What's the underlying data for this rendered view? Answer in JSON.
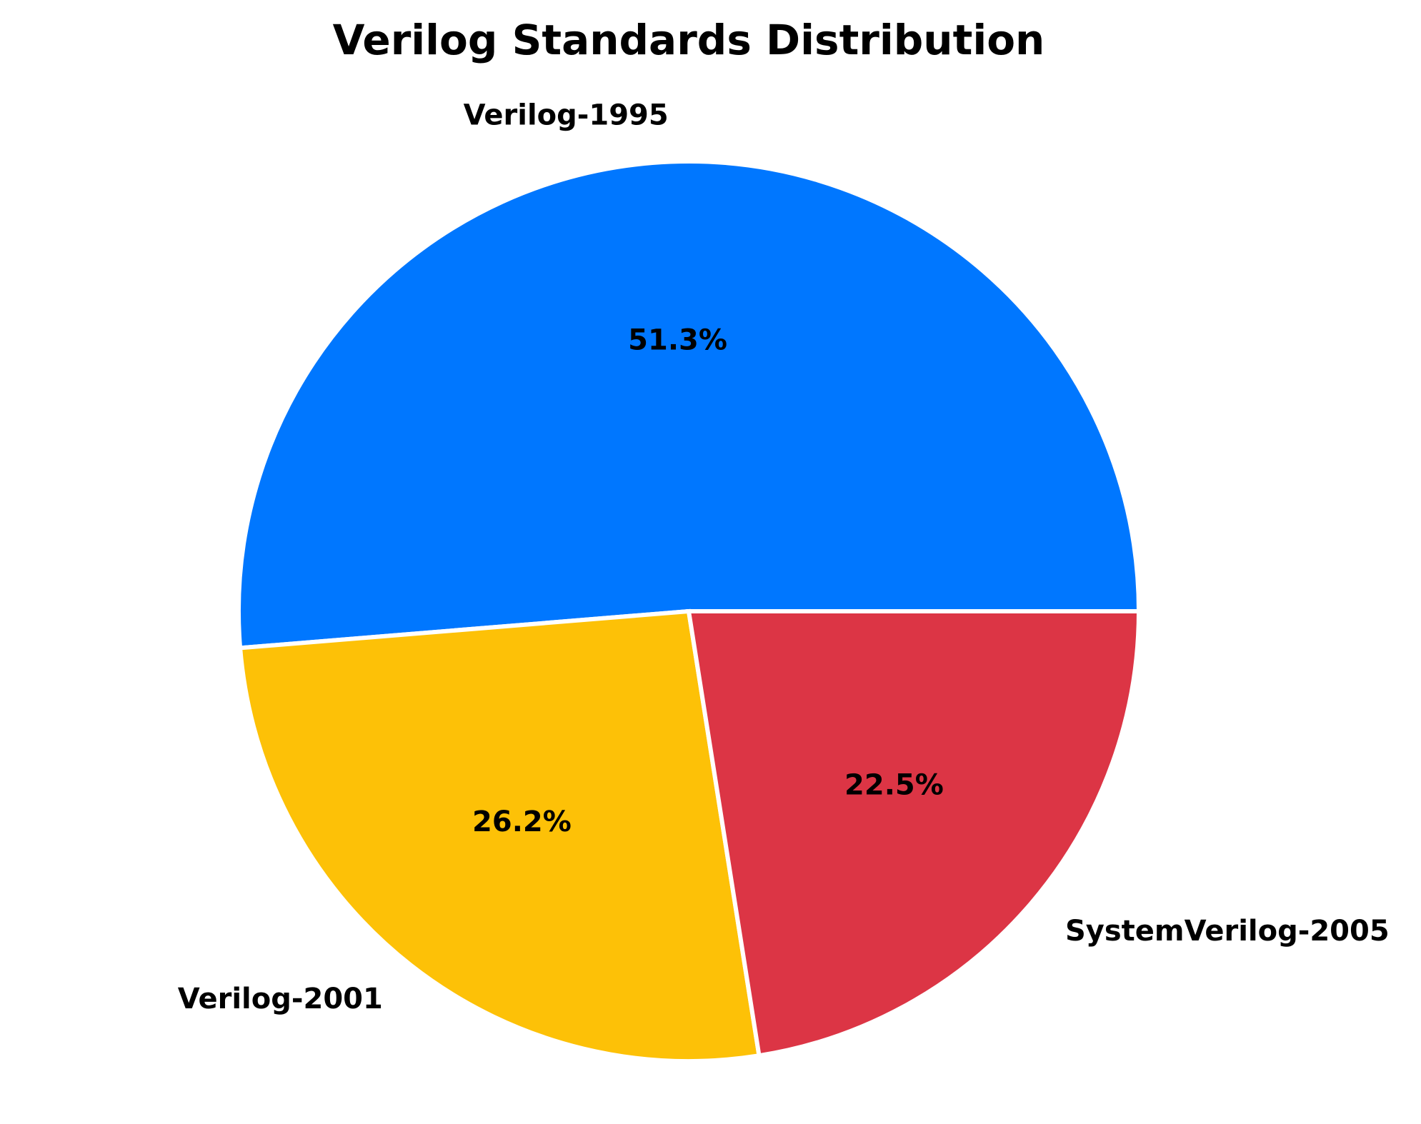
{
  "chart_data": {
    "type": "pie",
    "title": "Verilog Standards Distribution",
    "categories": [
      "Verilog-1995",
      "Verilog-2001",
      "SystemVerilog-2005"
    ],
    "values": [
      51.3,
      26.2,
      22.5
    ],
    "percent_labels": [
      "51.3%",
      "26.2%",
      "22.5%"
    ],
    "colors": [
      "#0077FF",
      "#FDC107",
      "#DC3545"
    ],
    "start_angle_deg": 0,
    "direction": "counterclockwise",
    "legend": "none"
  }
}
